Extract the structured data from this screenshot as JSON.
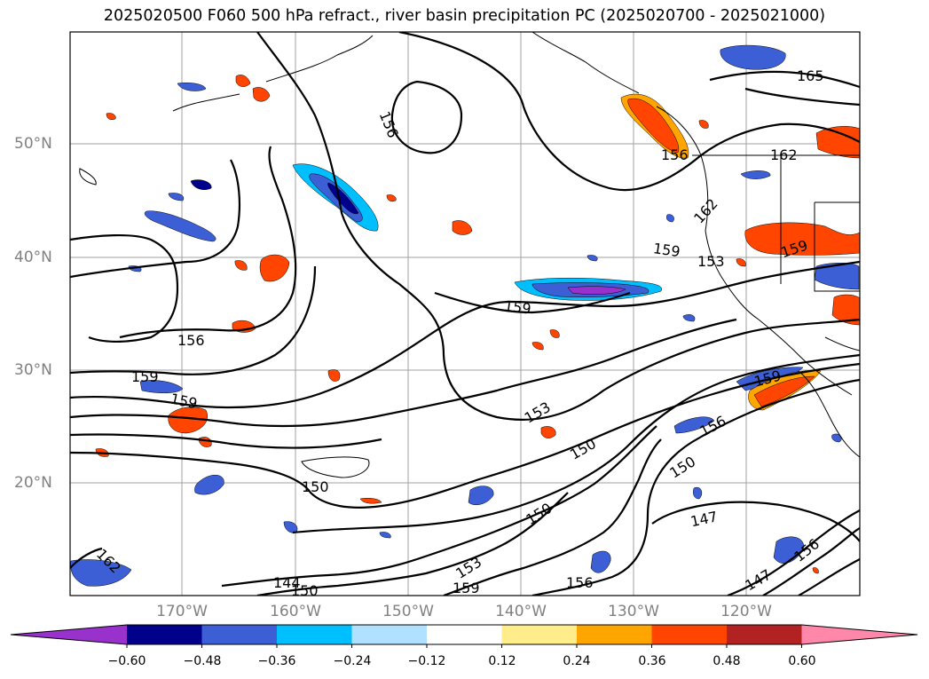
{
  "title": "2025020500 F060 500 hPa refract., river basin precipitation PC (2025020700 - 2025021000)",
  "map": {
    "lat_labels": [
      "50°N",
      "40°N",
      "30°N",
      "20°N"
    ],
    "lon_labels": [
      "170°W",
      "160°W",
      "150°W",
      "140°W",
      "130°W",
      "120°W"
    ],
    "gridlines": true,
    "coastlines": true,
    "contour_color": "#000000",
    "contour_labels": [
      "165",
      "162",
      "162",
      "159",
      "159",
      "159",
      "159",
      "159",
      "159",
      "159",
      "156",
      "156",
      "156",
      "156",
      "156",
      "156",
      "153",
      "153",
      "153",
      "150",
      "150",
      "150",
      "150",
      "150",
      "147",
      "147",
      "144",
      "162"
    ]
  },
  "colorbar": {
    "ticks": [
      "−0.60",
      "−0.48",
      "−0.36",
      "−0.24",
      "−0.12",
      "0.12",
      "0.24",
      "0.36",
      "0.48",
      "0.60"
    ],
    "colors": [
      "#9932cc",
      "#00008b",
      "#3d5fd6",
      "#00bfff",
      "#b0e2ff",
      "#ffffff",
      "#ffec8b",
      "#ffa500",
      "#ff4500",
      "#b22222",
      "#ff88aa"
    ]
  }
}
